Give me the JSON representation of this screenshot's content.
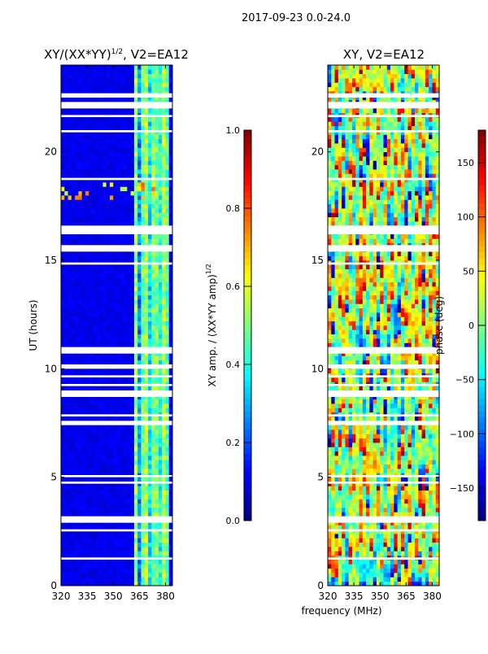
{
  "suptitle": "2017-09-23 0.0-24.0",
  "xlabel": "frequency (MHz)",
  "chart_data": [
    {
      "type": "heatmap",
      "title_main": "XY/(XX*YY)",
      "title_sup": "1/2",
      "title_tail": ", V2=EA12",
      "xlim": [
        320,
        384
      ],
      "ylim": [
        0,
        24
      ],
      "xticks": [
        "320",
        "335",
        "350",
        "365",
        "380"
      ],
      "xtick_values": [
        320,
        335,
        350,
        365,
        380
      ],
      "yticks": [
        "0",
        "5",
        "10",
        "15",
        "20"
      ],
      "ytick_values": [
        0,
        5,
        10,
        15,
        20
      ],
      "ylabel": "UT (hours)",
      "colormap": "jet",
      "bright_band_mhz": [
        362,
        382
      ],
      "background_value": 0.08,
      "band_value_range": [
        0.3,
        0.65
      ],
      "colorbar": {
        "range": [
          0,
          1
        ],
        "ticks": [
          "0.0",
          "0.2",
          "0.4",
          "0.6",
          "0.8",
          "1.0"
        ],
        "tick_values": [
          0,
          0.2,
          0.4,
          0.6,
          0.8,
          1.0
        ],
        "label_main": "XY amp. / (XX*YY amp)",
        "label_sup": "1/2"
      }
    },
    {
      "type": "heatmap",
      "title": "XY, V2=EA12",
      "xlim": [
        320,
        384
      ],
      "ylim": [
        0,
        24
      ],
      "xticks": [
        "320",
        "335",
        "350",
        "365",
        "380"
      ],
      "xtick_values": [
        320,
        335,
        350,
        365,
        380
      ],
      "yticks": [
        "0",
        "5",
        "10",
        "15",
        "20"
      ],
      "ytick_values": [
        0,
        5,
        10,
        15,
        20
      ],
      "colormap": "jet",
      "colorbar": {
        "range": [
          -180,
          180
        ],
        "ticks": [
          "−150",
          "−100",
          "−50",
          "0",
          "50",
          "100",
          "150"
        ],
        "tick_values": [
          -150,
          -100,
          -50,
          0,
          50,
          100,
          150
        ],
        "label": "phase (deg)"
      }
    }
  ],
  "missing_ut_ranges": [
    [
      22.5,
      22.7
    ],
    [
      22.0,
      22.3
    ],
    [
      21.6,
      21.7
    ],
    [
      20.9,
      21.0
    ],
    [
      18.7,
      18.8
    ],
    [
      16.2,
      16.6
    ],
    [
      15.4,
      15.7
    ],
    [
      14.8,
      14.9
    ],
    [
      10.7,
      11.0
    ],
    [
      10.0,
      10.2
    ],
    [
      9.6,
      9.7
    ],
    [
      9.2,
      9.3
    ],
    [
      8.7,
      9.0
    ],
    [
      7.8,
      7.9
    ],
    [
      7.4,
      7.6
    ],
    [
      5.0,
      5.1
    ],
    [
      4.7,
      4.8
    ],
    [
      2.9,
      3.2
    ],
    [
      2.5,
      2.6
    ],
    [
      1.2,
      1.3
    ]
  ]
}
